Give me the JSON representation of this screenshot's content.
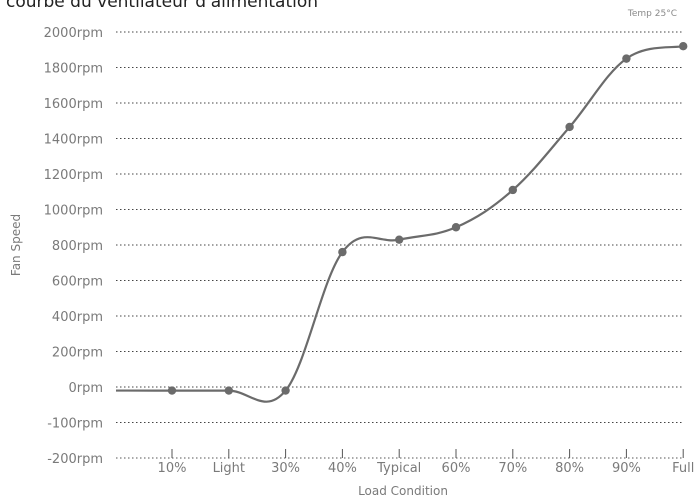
{
  "chart_data": {
    "type": "line",
    "title": "courbe du ventilateur d'alimentation",
    "note": "Temp 25°C",
    "xlabel": "Load Condition",
    "ylabel": "Fan Speed",
    "categories": [
      "10%",
      "Light",
      "30%",
      "40%",
      "Typical",
      "60%",
      "70%",
      "80%",
      "90%",
      "Full"
    ],
    "yticks": [
      "2000rpm",
      "1800rpm",
      "1600rpm",
      "1400rpm",
      "1200rpm",
      "1000rpm",
      "800rpm",
      "600rpm",
      "400rpm",
      "200rpm",
      "0rpm",
      "-100rpm",
      "-200rpm"
    ],
    "series": [
      {
        "values": [
          -10,
          -10,
          -10,
          760,
          830,
          900,
          1110,
          1465,
          1850,
          1920
        ]
      }
    ],
    "line_color": "#6b6b6b",
    "grid": "horizontal dotted"
  }
}
